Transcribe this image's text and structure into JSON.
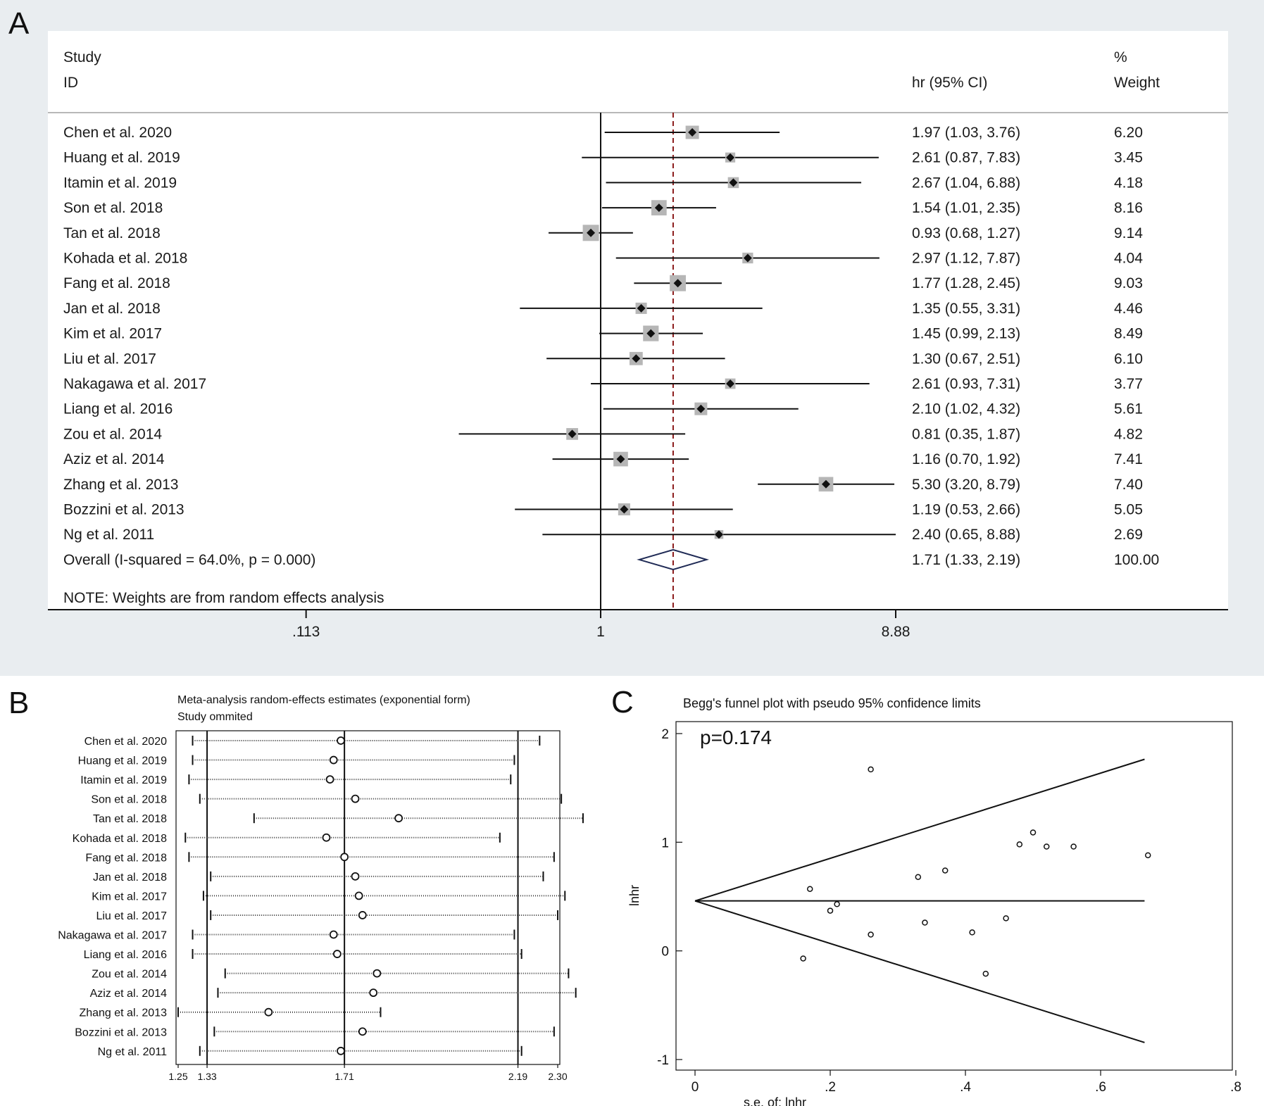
{
  "panel_labels": {
    "a": "A",
    "b": "B",
    "c": "C"
  },
  "chart_data": [
    {
      "panel": "A",
      "type": "forest",
      "header": {
        "study": "Study",
        "id": "ID",
        "est": "hr (95% CI)",
        "pct": "%",
        "weight": "Weight"
      },
      "studies": [
        {
          "name": "Chen et al. 2020",
          "hr": 1.97,
          "lo": 1.03,
          "hi": 3.76,
          "ci": "1.97 (1.03, 3.76)",
          "weight": "6.20",
          "w": 6.2
        },
        {
          "name": "Huang et al. 2019",
          "hr": 2.61,
          "lo": 0.87,
          "hi": 7.83,
          "ci": "2.61 (0.87, 7.83)",
          "weight": "3.45",
          "w": 3.45
        },
        {
          "name": "Itamin et al. 2019",
          "hr": 2.67,
          "lo": 1.04,
          "hi": 6.88,
          "ci": "2.67 (1.04, 6.88)",
          "weight": "4.18",
          "w": 4.18
        },
        {
          "name": "Son et al. 2018",
          "hr": 1.54,
          "lo": 1.01,
          "hi": 2.35,
          "ci": "1.54 (1.01, 2.35)",
          "weight": "8.16",
          "w": 8.16
        },
        {
          "name": "Tan et al. 2018",
          "hr": 0.93,
          "lo": 0.68,
          "hi": 1.27,
          "ci": "0.93 (0.68, 1.27)",
          "weight": "9.14",
          "w": 9.14
        },
        {
          "name": "Kohada et al. 2018",
          "hr": 2.97,
          "lo": 1.12,
          "hi": 7.87,
          "ci": "2.97 (1.12, 7.87)",
          "weight": "4.04",
          "w": 4.04
        },
        {
          "name": "Fang et al. 2018",
          "hr": 1.77,
          "lo": 1.28,
          "hi": 2.45,
          "ci": "1.77 (1.28, 2.45)",
          "weight": "9.03",
          "w": 9.03
        },
        {
          "name": "Jan et al. 2018",
          "hr": 1.35,
          "lo": 0.55,
          "hi": 3.31,
          "ci": "1.35 (0.55, 3.31)",
          "weight": "4.46",
          "w": 4.46
        },
        {
          "name": "Kim et al. 2017",
          "hr": 1.45,
          "lo": 0.99,
          "hi": 2.13,
          "ci": "1.45 (0.99, 2.13)",
          "weight": "8.49",
          "w": 8.49
        },
        {
          "name": "Liu et al. 2017",
          "hr": 1.3,
          "lo": 0.67,
          "hi": 2.51,
          "ci": "1.30 (0.67, 2.51)",
          "weight": "6.10",
          "w": 6.1
        },
        {
          "name": "Nakagawa et al. 2017",
          "hr": 2.61,
          "lo": 0.93,
          "hi": 7.31,
          "ci": "2.61 (0.93, 7.31)",
          "weight": "3.77",
          "w": 3.77
        },
        {
          "name": "Liang et al. 2016",
          "hr": 2.1,
          "lo": 1.02,
          "hi": 4.32,
          "ci": "2.10 (1.02, 4.32)",
          "weight": "5.61",
          "w": 5.61
        },
        {
          "name": "Zou et al. 2014",
          "hr": 0.81,
          "lo": 0.35,
          "hi": 1.87,
          "ci": "0.81 (0.35, 1.87)",
          "weight": "4.82",
          "w": 4.82
        },
        {
          "name": "Aziz et al. 2014",
          "hr": 1.16,
          "lo": 0.7,
          "hi": 1.92,
          "ci": "1.16 (0.70, 1.92)",
          "weight": "7.41",
          "w": 7.41
        },
        {
          "name": "Zhang et al. 2013",
          "hr": 5.3,
          "lo": 3.2,
          "hi": 8.79,
          "ci": "5.30 (3.20, 8.79)",
          "weight": "7.40",
          "w": 7.4
        },
        {
          "name": "Bozzini et al. 2013",
          "hr": 1.19,
          "lo": 0.53,
          "hi": 2.66,
          "ci": "1.19 (0.53, 2.66)",
          "weight": "5.05",
          "w": 5.05
        },
        {
          "name": "Ng et al. 2011",
          "hr": 2.4,
          "lo": 0.65,
          "hi": 8.88,
          "ci": "2.40 (0.65, 8.88)",
          "weight": "2.69",
          "w": 2.69
        }
      ],
      "overall": {
        "label": "Overall  (I-squared = 64.0%, p = 0.000)",
        "hr": 1.71,
        "lo": 1.33,
        "hi": 2.19,
        "ci": "1.71 (1.33, 2.19)",
        "weight": "100.00"
      },
      "note": "NOTE: Weights are from random effects analysis",
      "x_scale": "log",
      "x_range": [
        0.113,
        8.88
      ],
      "x_ticks": [
        {
          "v": 0.113,
          "label": ".113"
        },
        {
          "v": 1,
          "label": "1"
        },
        {
          "v": 8.88,
          "label": "8.88"
        }
      ],
      "ref_line": 1
    },
    {
      "panel": "B",
      "type": "sensitivity",
      "title_line1": "Meta-analysis random-effects estimates (exponential form)",
      "title_line2": "Study ommited",
      "x_range": [
        1.25,
        2.3
      ],
      "vlines": [
        1.33,
        1.71,
        2.19
      ],
      "x_ticks": [
        {
          "v": 1.25,
          "label": "1.25"
        },
        {
          "v": 1.33,
          "label": "1.33"
        },
        {
          "v": 1.71,
          "label": "1.71"
        },
        {
          "v": 2.19,
          "label": "2.19"
        },
        {
          "v": 2.3,
          "label": "2.30"
        }
      ],
      "rows": [
        {
          "name": "Chen et al. 2020",
          "est": 1.7,
          "lo": 1.29,
          "hi": 2.25
        },
        {
          "name": "Huang et al. 2019",
          "est": 1.68,
          "lo": 1.29,
          "hi": 2.18
        },
        {
          "name": "Itamin et al. 2019",
          "est": 1.67,
          "lo": 1.28,
          "hi": 2.17
        },
        {
          "name": "Son et al. 2018",
          "est": 1.74,
          "lo": 1.31,
          "hi": 2.31
        },
        {
          "name": "Tan et al. 2018",
          "est": 1.86,
          "lo": 1.46,
          "hi": 2.37
        },
        {
          "name": "Kohada et al. 2018",
          "est": 1.66,
          "lo": 1.27,
          "hi": 2.14
        },
        {
          "name": "Fang et al. 2018",
          "est": 1.71,
          "lo": 1.28,
          "hi": 2.29
        },
        {
          "name": "Jan et al. 2018",
          "est": 1.74,
          "lo": 1.34,
          "hi": 2.26
        },
        {
          "name": "Kim et al. 2017",
          "est": 1.75,
          "lo": 1.32,
          "hi": 2.32
        },
        {
          "name": "Liu et al. 2017",
          "est": 1.76,
          "lo": 1.34,
          "hi": 2.3
        },
        {
          "name": "Nakagawa et al. 2017",
          "est": 1.68,
          "lo": 1.29,
          "hi": 2.18
        },
        {
          "name": "Liang et al. 2016",
          "est": 1.69,
          "lo": 1.29,
          "hi": 2.2
        },
        {
          "name": "Zou et al. 2014",
          "est": 1.8,
          "lo": 1.38,
          "hi": 2.33
        },
        {
          "name": "Aziz et al. 2014",
          "est": 1.79,
          "lo": 1.36,
          "hi": 2.35
        },
        {
          "name": "Zhang et al. 2013",
          "est": 1.5,
          "lo": 1.25,
          "hi": 1.81
        },
        {
          "name": "Bozzini et al. 2013",
          "est": 1.76,
          "lo": 1.35,
          "hi": 2.29
        },
        {
          "name": "Ng et al. 2011",
          "est": 1.7,
          "lo": 1.31,
          "hi": 2.2
        }
      ]
    },
    {
      "panel": "C",
      "type": "scatter",
      "title": "Begg's funnel plot with pseudo 95% confidence limits",
      "annotation": "p=0.174",
      "xlabel": "s.e. of: lnhr",
      "ylabel": "lnhr",
      "xlim": [
        0,
        0.8
      ],
      "ylim": [
        -1,
        2
      ],
      "x_ticks": [
        {
          "v": 0,
          "label": "0"
        },
        {
          "v": 0.2,
          "label": ".2"
        },
        {
          "v": 0.4,
          "label": ".4"
        },
        {
          "v": 0.6,
          "label": ".6"
        },
        {
          "v": 0.8,
          "label": ".8"
        }
      ],
      "y_ticks": [
        {
          "v": -1,
          "label": "-1"
        },
        {
          "v": 0,
          "label": "0"
        },
        {
          "v": 1,
          "label": "1"
        },
        {
          "v": 2,
          "label": "2"
        }
      ],
      "pooled": 0.46,
      "funnel_max_se": 0.665,
      "points": [
        {
          "x": 0.33,
          "y": 0.68
        },
        {
          "x": 0.56,
          "y": 0.96
        },
        {
          "x": 0.48,
          "y": 0.98
        },
        {
          "x": 0.21,
          "y": 0.43
        },
        {
          "x": 0.16,
          "y": -0.07
        },
        {
          "x": 0.5,
          "y": 1.09
        },
        {
          "x": 0.17,
          "y": 0.57
        },
        {
          "x": 0.46,
          "y": 0.3
        },
        {
          "x": 0.2,
          "y": 0.37
        },
        {
          "x": 0.34,
          "y": 0.26
        },
        {
          "x": 0.52,
          "y": 0.96
        },
        {
          "x": 0.37,
          "y": 0.74
        },
        {
          "x": 0.43,
          "y": -0.21
        },
        {
          "x": 0.26,
          "y": 0.15
        },
        {
          "x": 0.26,
          "y": 1.67
        },
        {
          "x": 0.41,
          "y": 0.17
        },
        {
          "x": 0.67,
          "y": 0.88
        }
      ]
    }
  ]
}
